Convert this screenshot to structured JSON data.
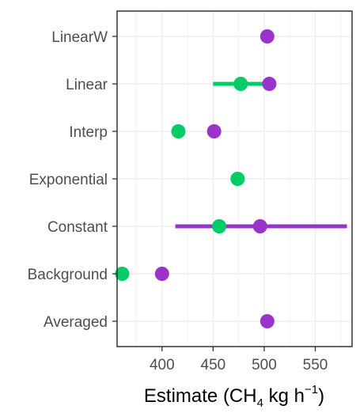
{
  "chart_data": {
    "type": "scatter",
    "xlabel": {
      "prefix": "Estimate (CH",
      "sub": "4",
      "middle": " kg h",
      "sup": "−1",
      "suffix": ")"
    },
    "ylabel": "",
    "title": "",
    "categories": [
      "LinearW",
      "Linear",
      "Interp",
      "Exponential",
      "Constant",
      "Background",
      "Averaged"
    ],
    "xlim": [
      356,
      586
    ],
    "xticks": [
      400,
      450,
      500,
      550
    ],
    "grid": true,
    "legend": "none",
    "series": [
      {
        "color": "#00cc66",
        "points": [
          {
            "category": "Linear",
            "x": 477,
            "low": 450,
            "high": 503
          },
          {
            "category": "Interp",
            "x": 416
          },
          {
            "category": "Exponential",
            "x": 474
          },
          {
            "category": "Constant",
            "x": 456
          },
          {
            "category": "Background",
            "x": 361
          }
        ]
      },
      {
        "color": "#9933cc",
        "points": [
          {
            "category": "LinearW",
            "x": 503
          },
          {
            "category": "Linear",
            "x": 505
          },
          {
            "category": "Interp",
            "x": 451
          },
          {
            "category": "Constant",
            "x": 496,
            "low": 413,
            "high": 581
          },
          {
            "category": "Background",
            "x": 400
          },
          {
            "category": "Averaged",
            "x": 503
          }
        ]
      }
    ]
  }
}
